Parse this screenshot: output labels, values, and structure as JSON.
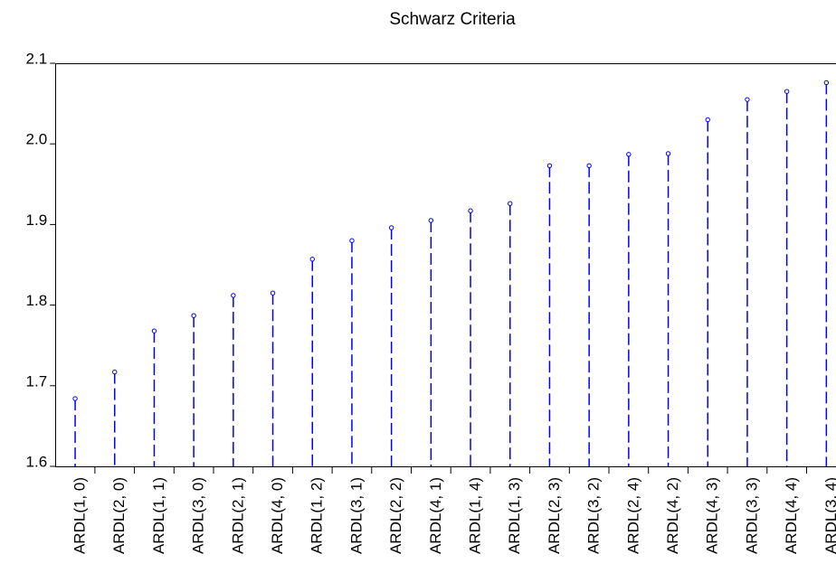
{
  "chart_data": {
    "type": "dropline",
    "title": "Schwarz Criteria",
    "categories": [
      "ARDL(1, 0)",
      "ARDL(2, 0)",
      "ARDL(1, 1)",
      "ARDL(3, 0)",
      "ARDL(2, 1)",
      "ARDL(4, 0)",
      "ARDL(1, 2)",
      "ARDL(3, 1)",
      "ARDL(2, 2)",
      "ARDL(4, 1)",
      "ARDL(1, 4)",
      "ARDL(1, 3)",
      "ARDL(2, 3)",
      "ARDL(3, 2)",
      "ARDL(2, 4)",
      "ARDL(4, 2)",
      "ARDL(4, 3)",
      "ARDL(3, 3)",
      "ARDL(4, 4)",
      "ARDL(3, 4)"
    ],
    "values": [
      1.684,
      1.717,
      1.768,
      1.787,
      1.812,
      1.815,
      1.857,
      1.88,
      1.896,
      1.905,
      1.917,
      1.926,
      1.973,
      1.973,
      1.987,
      1.988,
      2.03,
      2.055,
      2.065,
      2.076
    ],
    "color": "#0000ff",
    "ylim": [
      1.6,
      2.1
    ],
    "yticks": [
      1.6,
      1.7,
      1.8,
      1.9,
      {
        "value": 2.0,
        "label": "2.0"
      },
      2.1
    ]
  }
}
